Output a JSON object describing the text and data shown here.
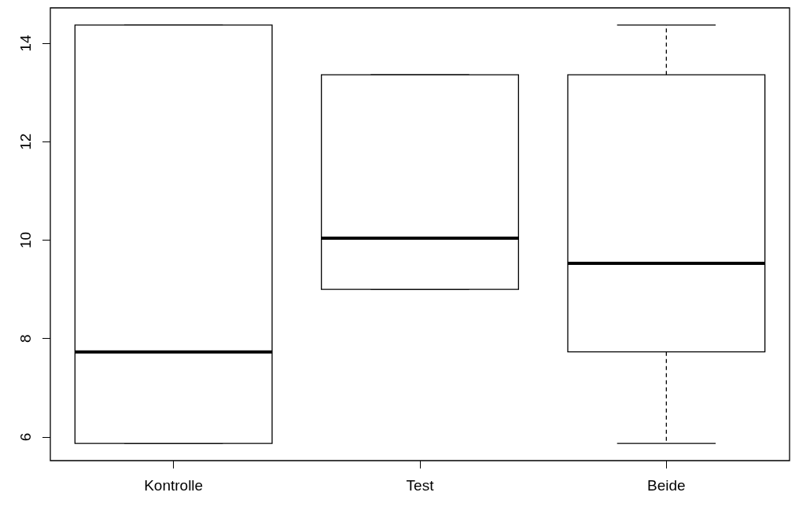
{
  "chart_data": {
    "type": "box",
    "categories": [
      "Kontrolle",
      "Test",
      "Beide"
    ],
    "boxes": [
      {
        "low": 5.87,
        "q1": 5.87,
        "median": 7.73,
        "q3": 14.37,
        "high": 14.37
      },
      {
        "low": 9.0,
        "q1": 9.0,
        "median": 10.04,
        "q3": 13.36,
        "high": 13.36
      },
      {
        "low": 5.87,
        "q1": 7.73,
        "median": 9.53,
        "q3": 13.36,
        "high": 14.37
      }
    ],
    "ylim": [
      5.52,
      14.72
    ],
    "yticks": [
      6,
      8,
      10,
      12,
      14
    ],
    "grid": false
  }
}
